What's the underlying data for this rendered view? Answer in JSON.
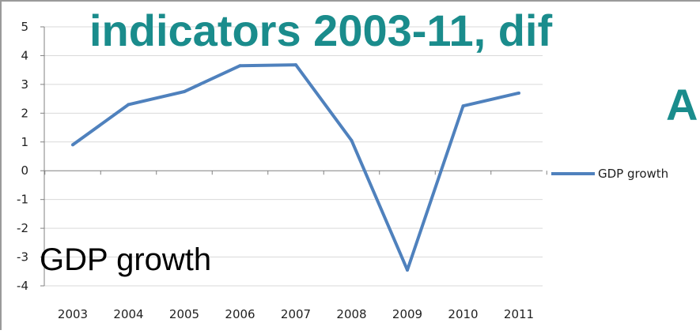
{
  "chart_data": {
    "type": "line",
    "title_line1": "indicators 2003-11, dif",
    "title_line2": "A",
    "categories": [
      "2003",
      "2004",
      "2005",
      "2006",
      "2007",
      "2008",
      "2009",
      "2010",
      "2011"
    ],
    "series": [
      {
        "name": "GDP growth",
        "values": [
          0.9,
          2.3,
          2.75,
          3.65,
          3.68,
          1.05,
          -3.45,
          2.25,
          2.7
        ]
      }
    ],
    "ylim": [
      -4,
      5
    ],
    "yticks": [
      "5",
      "4",
      "3",
      "2",
      "1",
      "0",
      "-1",
      "-2",
      "-3",
      "-4"
    ],
    "grid": true,
    "legend_position": "right",
    "overlay_label": "GDP growth",
    "colors": {
      "series": "#4f81bd",
      "title": "#1a8c8c",
      "grid": "#d9d9d9"
    }
  }
}
